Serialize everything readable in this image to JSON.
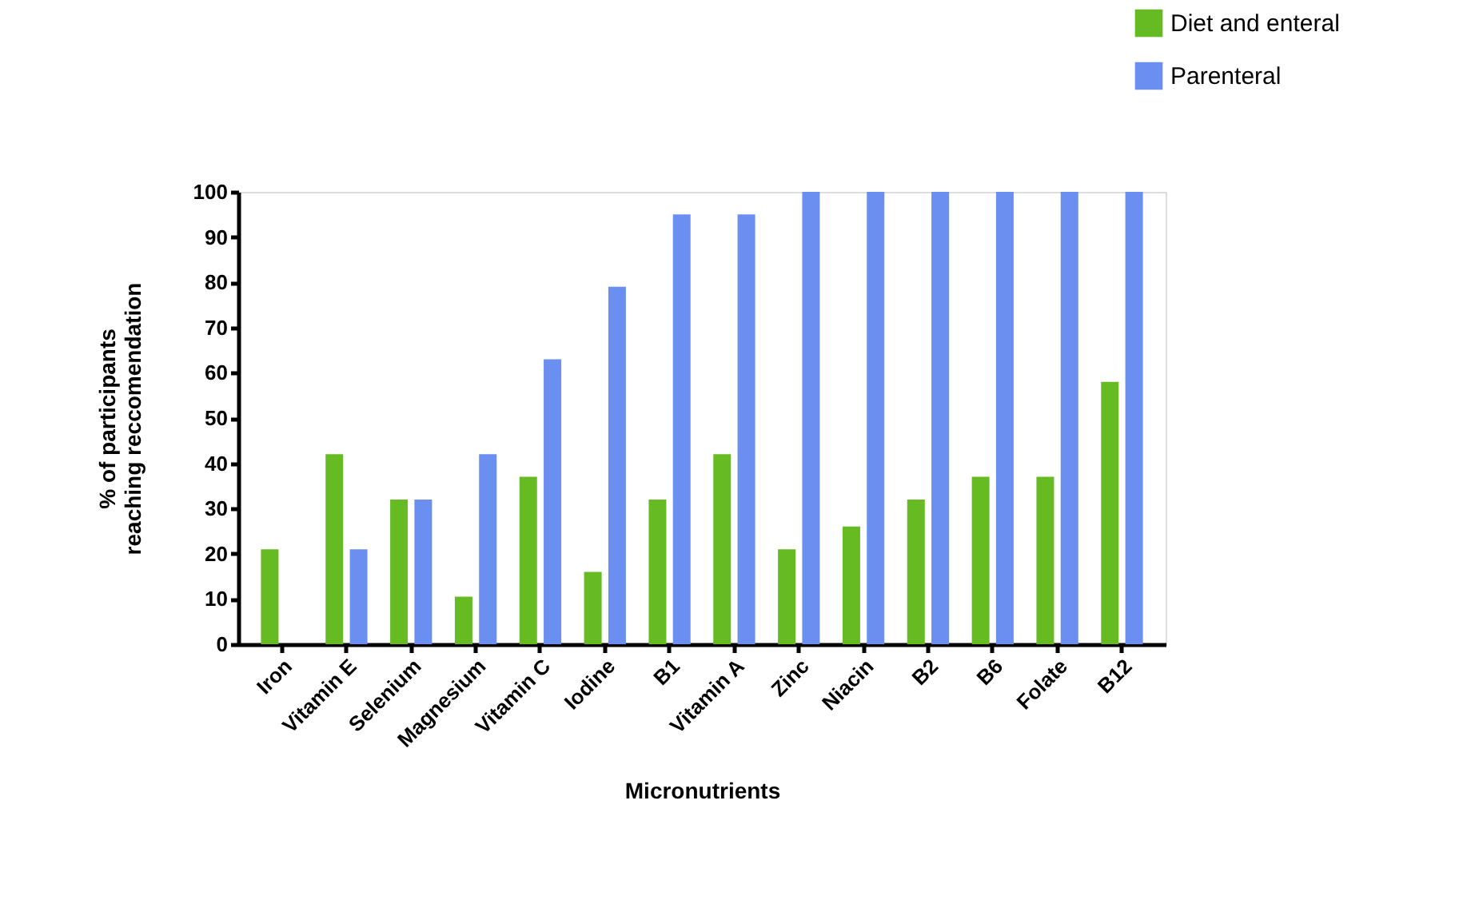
{
  "chart_data": {
    "type": "bar",
    "xlabel": "Micronutrients",
    "ylabel": "% of participants\nreaching reccomendation",
    "categories": [
      "Iron",
      "Vitamin E",
      "Selenium",
      "Magnesium",
      "Vitamin C",
      "Iodine",
      "B1",
      "Vitamin A",
      "Zinc",
      "Niacin",
      "B2",
      "B6",
      "Folate",
      "B12"
    ],
    "series": [
      {
        "name": "Diet and enteral",
        "color": "#66bb22",
        "values": [
          21,
          42,
          32,
          10.5,
          37,
          16,
          32,
          42,
          21,
          26,
          32,
          37,
          37,
          58
        ]
      },
      {
        "name": "Parenteral",
        "color": "#6b8ff0",
        "values": [
          0,
          21,
          32,
          42,
          63,
          79,
          95,
          95,
          100,
          100,
          100,
          100,
          100,
          100
        ]
      }
    ],
    "ylim": [
      0,
      100
    ],
    "yticks": [
      0,
      10,
      20,
      30,
      40,
      50,
      60,
      70,
      80,
      90,
      100
    ],
    "grid": false,
    "legend": "top right"
  }
}
